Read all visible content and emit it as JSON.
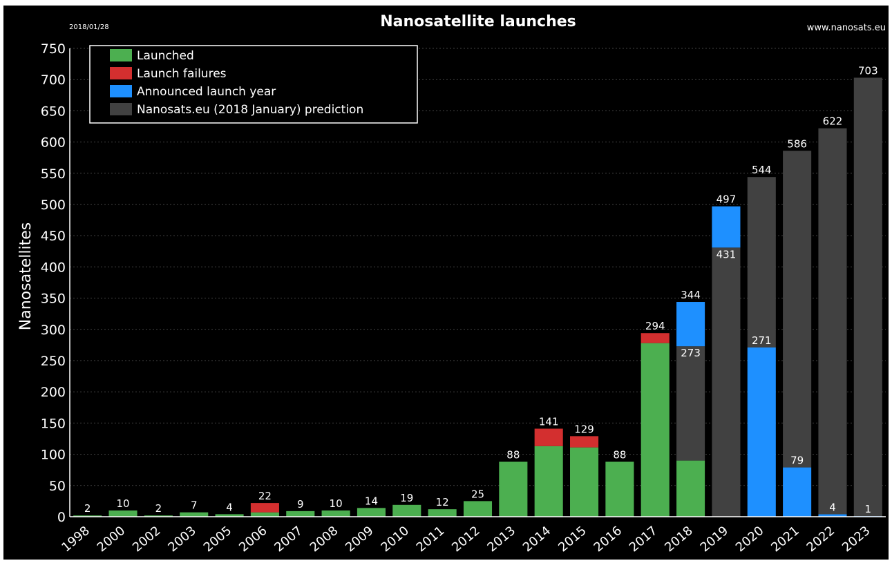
{
  "colors": {
    "background": "#000000",
    "launched": "#4caf50",
    "failures": "#d32f2f",
    "announced": "#1e90ff",
    "prediction": "#414141",
    "grid": "#444444",
    "text": "#ffffff"
  },
  "chart_data": {
    "type": "bar",
    "stacked": true,
    "title": "Nanosatellite launches",
    "date_stamp": "2018/01/28",
    "source": "www.nanosats.eu",
    "ylabel": "Nanosatellites",
    "xlabel": "",
    "ylim": [
      0,
      750
    ],
    "yticks": [
      0,
      50,
      100,
      150,
      200,
      250,
      300,
      350,
      400,
      450,
      500,
      550,
      600,
      650,
      700,
      750
    ],
    "grid": true,
    "legend_position": "top-left",
    "categories": [
      "1998",
      "2000",
      "2002",
      "2003",
      "2005",
      "2006",
      "2007",
      "2008",
      "2009",
      "2010",
      "2011",
      "2012",
      "2013",
      "2014",
      "2015",
      "2016",
      "2017",
      "2018",
      "2019",
      "2020",
      "2021",
      "2022",
      "2023"
    ],
    "series": [
      {
        "name": "Launched",
        "values": [
          2,
          10,
          2,
          7,
          4,
          7,
          9,
          10,
          14,
          19,
          12,
          25,
          88,
          113,
          111,
          88,
          278,
          90,
          0,
          0,
          0,
          0,
          0
        ]
      },
      {
        "name": "Launch failures",
        "values": [
          0,
          0,
          0,
          0,
          0,
          15,
          0,
          0,
          0,
          0,
          0,
          0,
          0,
          28,
          18,
          0,
          16,
          0,
          0,
          0,
          0,
          0,
          0
        ]
      },
      {
        "name": "Announced launch year",
        "values": [
          0,
          0,
          0,
          0,
          0,
          0,
          0,
          0,
          0,
          0,
          0,
          0,
          0,
          0,
          0,
          0,
          0,
          71,
          66,
          271,
          79,
          4,
          1
        ]
      },
      {
        "name": "Nanosats.eu (2018 January) prediction",
        "values": [
          0,
          0,
          0,
          0,
          0,
          0,
          0,
          0,
          0,
          0,
          0,
          0,
          0,
          0,
          0,
          0,
          0,
          183,
          431,
          273,
          507,
          618,
          702
        ]
      }
    ],
    "data_labels": [
      {
        "category": "1998",
        "text": "2",
        "at": 2
      },
      {
        "category": "2000",
        "text": "10",
        "at": 10
      },
      {
        "category": "2002",
        "text": "2",
        "at": 2
      },
      {
        "category": "2003",
        "text": "7",
        "at": 7
      },
      {
        "category": "2005",
        "text": "4",
        "at": 4
      },
      {
        "category": "2006",
        "text": "22",
        "at": 22
      },
      {
        "category": "2007",
        "text": "9",
        "at": 9
      },
      {
        "category": "2008",
        "text": "10",
        "at": 10
      },
      {
        "category": "2009",
        "text": "14",
        "at": 14
      },
      {
        "category": "2010",
        "text": "19",
        "at": 19
      },
      {
        "category": "2011",
        "text": "12",
        "at": 12
      },
      {
        "category": "2012",
        "text": "25",
        "at": 25
      },
      {
        "category": "2013",
        "text": "88",
        "at": 88
      },
      {
        "category": "2014",
        "text": "141",
        "at": 141
      },
      {
        "category": "2015",
        "text": "129",
        "at": 129
      },
      {
        "category": "2016",
        "text": "88",
        "at": 88
      },
      {
        "category": "2017",
        "text": "294",
        "at": 294
      },
      {
        "category": "2018",
        "text": "344",
        "at": 344
      },
      {
        "category": "2018",
        "text": "273",
        "at": 273,
        "inside": true
      },
      {
        "category": "2019",
        "text": "497",
        "at": 497
      },
      {
        "category": "2019",
        "text": "431",
        "at": 431,
        "inside": true
      },
      {
        "category": "2020",
        "text": "544",
        "at": 544
      },
      {
        "category": "2020",
        "text": "271",
        "at": 271
      },
      {
        "category": "2021",
        "text": "586",
        "at": 586
      },
      {
        "category": "2021",
        "text": "79",
        "at": 79
      },
      {
        "category": "2022",
        "text": "622",
        "at": 622
      },
      {
        "category": "2022",
        "text": "4",
        "at": 4
      },
      {
        "category": "2023",
        "text": "703",
        "at": 703
      },
      {
        "category": "2023",
        "text": "1",
        "at": 1
      }
    ]
  }
}
